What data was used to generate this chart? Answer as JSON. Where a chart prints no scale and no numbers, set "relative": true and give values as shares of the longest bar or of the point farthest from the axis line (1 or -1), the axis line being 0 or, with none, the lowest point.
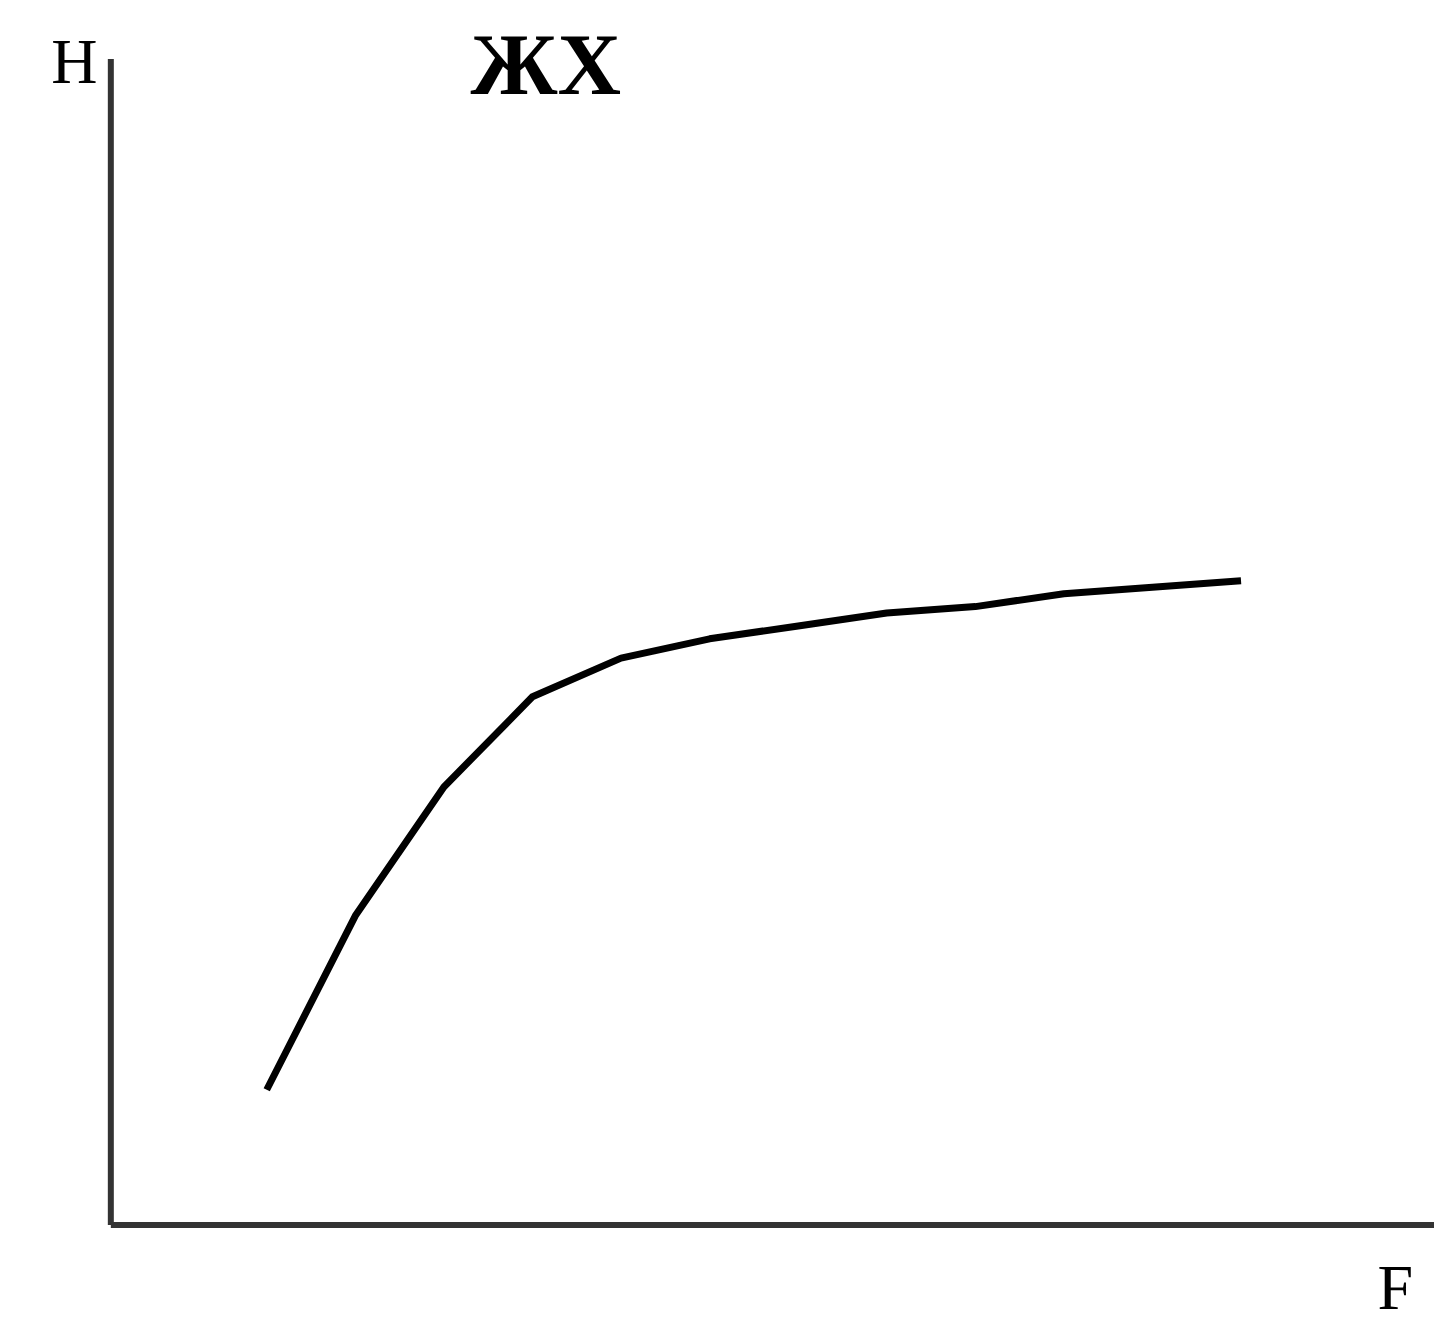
{
  "chart_data": {
    "type": "line",
    "title": "ЖХ",
    "xlabel": "F",
    "annotations": [
      "H"
    ],
    "relative": true,
    "categories": [
      null,
      null,
      null,
      null,
      null,
      null,
      null,
      null,
      null,
      null,
      null,
      null
    ],
    "series": [
      {
        "color": "#000000",
        "values": [
          0.21,
          0.48,
          0.68,
          0.82,
          0.88,
          0.91,
          0.93,
          0.95,
          0.96,
          0.98,
          0.99,
          1.0
        ]
      }
    ],
    "marker": "none",
    "line_style": "solid"
  }
}
